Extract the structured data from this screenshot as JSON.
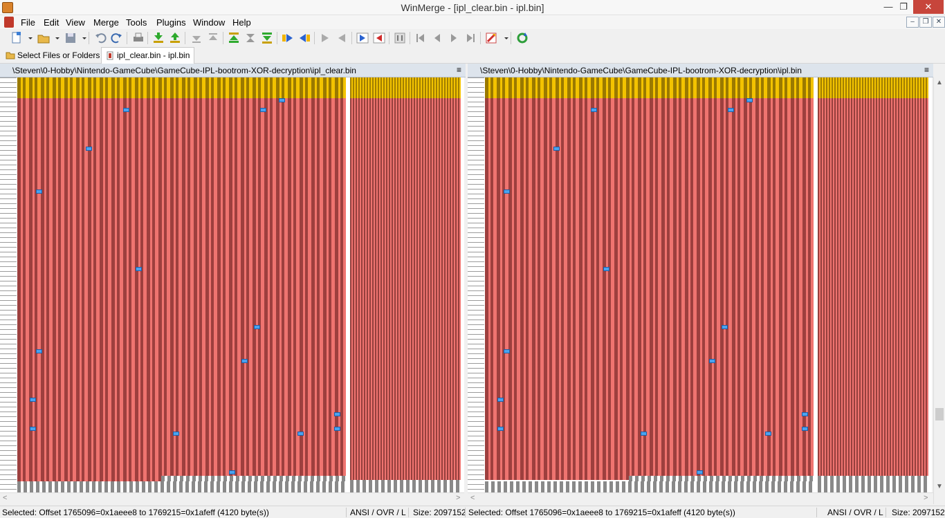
{
  "window": {
    "title": "WinMerge - [ipl_clear.bin - ipl.bin]",
    "controls": {
      "minimize": "—",
      "maximize": "❐",
      "close": "✕"
    }
  },
  "menu": [
    "File",
    "Edit",
    "View",
    "Merge",
    "Tools",
    "Plugins",
    "Window",
    "Help"
  ],
  "mdi_controls": [
    "–",
    "❐",
    "✕"
  ],
  "tabs": [
    {
      "label": "Select Files or Folders",
      "active": false
    },
    {
      "label": "ipl_clear.bin - ipl.bin",
      "active": true
    }
  ],
  "panes": {
    "left": {
      "path": "\\Steven\\0-Hobby\\Nintendo-GameCube\\GameCube-IPL-bootrom-XOR-decryption\\ipl_clear.bin",
      "menu_glyph": "≡"
    },
    "right": {
      "path": "\\Steven\\0-Hobby\\Nintendo-GameCube\\GameCube-IPL-bootrom-XOR-decryption\\ipl.bin",
      "menu_glyph": "≡"
    }
  },
  "status": {
    "left": {
      "selection": "Selected: Offset 1765096=0x1aeee8 to 1769215=0x1afeff (4120 byte(s))",
      "mode": "ANSI / OVR / L",
      "size": "Size: 2097152"
    },
    "right": {
      "selection": "Selected: Offset 1765096=0x1aeee8 to 1769215=0x1afeff (4120 byte(s))",
      "mode": "ANSI / OVR / L",
      "size": "Size: 2097152"
    }
  },
  "colors": {
    "diff_red": "#ef7470",
    "selection_yellow": "#f3c300",
    "marker_blue": "#4aa3f0",
    "pane_header": "#dde4ec",
    "close_button": "#c7453b"
  }
}
